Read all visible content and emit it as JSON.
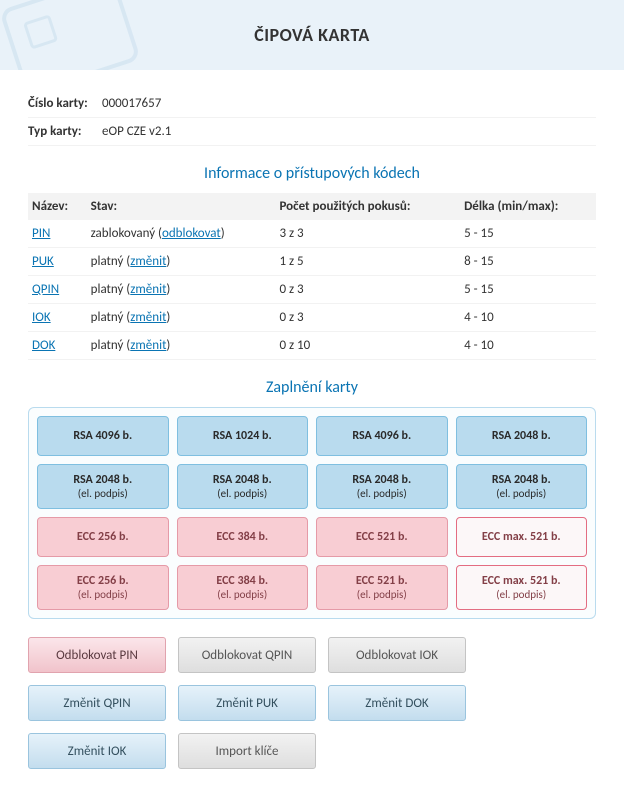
{
  "header": {
    "title": "ČIPOVÁ KARTA"
  },
  "meta": {
    "card_number_label": "Číslo karty:",
    "card_number_value": "000017657",
    "card_type_label": "Typ karty:",
    "card_type_value": "eOP CZE v2.1"
  },
  "codes_section": {
    "title": "Informace o přístupových kódech",
    "columns": {
      "name": "Název:",
      "state": "Stav:",
      "attempts": "Počet použitých pokusů:",
      "length": "Délka (min/max):"
    },
    "rows": [
      {
        "name": "PIN",
        "state_prefix": "zablokovaný (",
        "state_link": "odblokovat",
        "state_suffix": ")",
        "attempts": "3 z 3",
        "length": "5 - 15"
      },
      {
        "name": "PUK",
        "state_prefix": "platný (",
        "state_link": "změnit",
        "state_suffix": ")",
        "attempts": "1 z 5",
        "length": "8 - 15"
      },
      {
        "name": "QPIN",
        "state_prefix": "platný (",
        "state_link": "změnit",
        "state_suffix": ")",
        "attempts": "0 z 3",
        "length": "5 - 15"
      },
      {
        "name": "IOK",
        "state_prefix": "platný (",
        "state_link": "změnit",
        "state_suffix": ")",
        "attempts": "0 z 3",
        "length": "4 - 10"
      },
      {
        "name": "DOK",
        "state_prefix": "platný (",
        "state_link": "změnit",
        "state_suffix": ")",
        "attempts": "0 z 10",
        "length": "4 - 10"
      }
    ]
  },
  "slots_section": {
    "title": "Zaplnění karty",
    "rows": [
      [
        {
          "title": "RSA 4096 b.",
          "sub": "",
          "variant": "blue-fill"
        },
        {
          "title": "RSA 1024 b.",
          "sub": "",
          "variant": "blue-fill"
        },
        {
          "title": "RSA 4096 b.",
          "sub": "",
          "variant": "blue-fill"
        },
        {
          "title": "RSA 2048 b.",
          "sub": "",
          "variant": "blue-fill"
        }
      ],
      [
        {
          "title": "RSA 2048 b.",
          "sub": "(el. podpis)",
          "variant": "blue-fill"
        },
        {
          "title": "RSA 2048 b.",
          "sub": "(el. podpis)",
          "variant": "blue-fill"
        },
        {
          "title": "RSA 2048 b.",
          "sub": "(el. podpis)",
          "variant": "blue-fill"
        },
        {
          "title": "RSA 2048 b.",
          "sub": "(el. podpis)",
          "variant": "blue-fill"
        }
      ],
      [
        {
          "title": "ECC 256 b.",
          "sub": "",
          "variant": "pink-fill"
        },
        {
          "title": "ECC 384 b.",
          "sub": "",
          "variant": "pink-fill"
        },
        {
          "title": "ECC 521 b.",
          "sub": "",
          "variant": "pink-fill"
        },
        {
          "title": "ECC max. 521 b.",
          "sub": "",
          "variant": "pink-outline"
        }
      ],
      [
        {
          "title": "ECC 256 b.",
          "sub": "(el. podpis)",
          "variant": "pink-fill"
        },
        {
          "title": "ECC 384 b.",
          "sub": "(el. podpis)",
          "variant": "pink-fill"
        },
        {
          "title": "ECC 521 b.",
          "sub": "(el. podpis)",
          "variant": "pink-fill"
        },
        {
          "title": "ECC max. 521 b.",
          "sub": "(el. podpis)",
          "variant": "pink-outline"
        }
      ]
    ]
  },
  "actions": {
    "rows": [
      [
        {
          "label": "Odblokovat PIN",
          "variant": "pink",
          "name": "unblock-pin-button"
        },
        {
          "label": "Odblokovat QPIN",
          "variant": "gray",
          "name": "unblock-qpin-button"
        },
        {
          "label": "Odblokovat IOK",
          "variant": "gray",
          "name": "unblock-iok-button"
        }
      ],
      [
        {
          "label": "Změnit QPIN",
          "variant": "blue",
          "name": "change-qpin-button"
        },
        {
          "label": "Změnit PUK",
          "variant": "blue",
          "name": "change-puk-button"
        },
        {
          "label": "Změnit DOK",
          "variant": "blue",
          "name": "change-dok-button"
        }
      ],
      [
        {
          "label": "Změnit IOK",
          "variant": "blue",
          "name": "change-iok-button"
        },
        {
          "label": "Import klíče",
          "variant": "gray",
          "name": "import-key-button"
        }
      ]
    ]
  }
}
